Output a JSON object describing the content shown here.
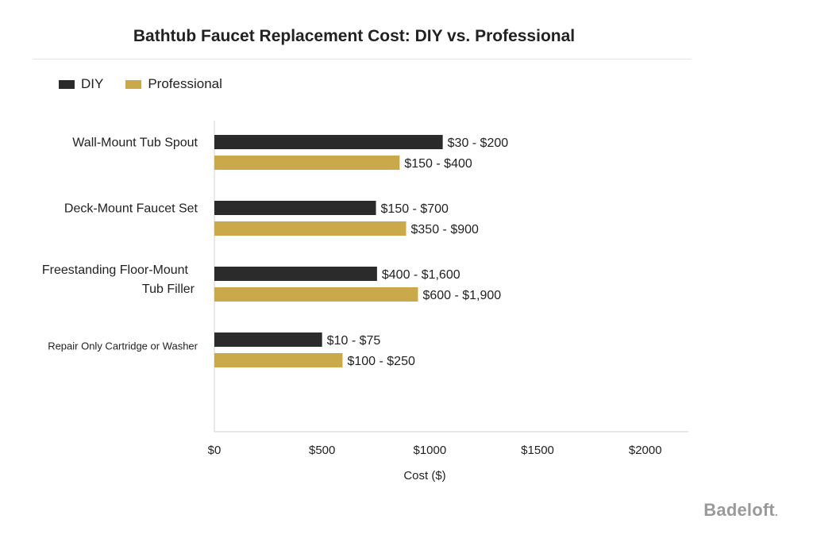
{
  "chart_data": {
    "type": "bar",
    "orientation": "horizontal",
    "title": "Bathtub Faucet Replacement Cost: DIY vs. Professional",
    "xlabel": "Cost ($)",
    "ylabel": "",
    "xlim": [
      0,
      2200
    ],
    "x_ticks": [
      0,
      500,
      1000,
      1500,
      2000
    ],
    "x_tick_labels": [
      "$0",
      "$500",
      "$1000",
      "$1500",
      "$2000"
    ],
    "grid": false,
    "legend_position": "top-left",
    "categories": [
      [
        "Wall-Mount Tub Spout"
      ],
      [
        "Deck-Mount Faucet Set"
      ],
      [
        "Freestanding Floor-Mount",
        "Tub Filler"
      ],
      [
        "Repair Only Cartridge or Washer"
      ]
    ],
    "series": [
      {
        "name": "DIY",
        "color": "#2b2b2b",
        "values": [
          1060,
          750,
          755,
          500
        ],
        "labels": [
          "$30 - $200",
          "$150 - $700",
          "$400 - $1,600",
          "$10 - $75"
        ]
      },
      {
        "name": "Professional",
        "color": "#c9a94a",
        "values": [
          860,
          890,
          945,
          595
        ],
        "labels": [
          "$150 - $400",
          "$350 - $900",
          "$600 - $1,900",
          "$100 - $250"
        ]
      }
    ]
  },
  "brand": {
    "name": "Badeloft",
    "suffix": "."
  }
}
